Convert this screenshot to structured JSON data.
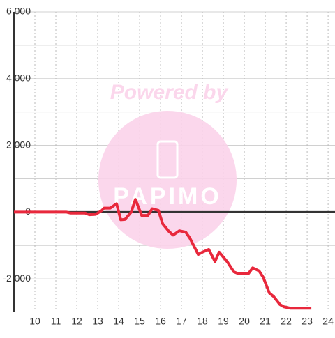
{
  "chart_data": {
    "type": "line",
    "watermark": {
      "text": "Powered by",
      "logo": "PAPIMO"
    },
    "x": [
      9,
      11.5,
      11.7,
      12.4,
      12.6,
      12.9,
      13.2,
      13.3,
      13.6,
      13.9,
      14.1,
      14.3,
      14.6,
      14.8,
      15.1,
      15.4,
      15.6,
      15.9,
      16.1,
      16.4,
      16.6,
      16.9,
      17.2,
      17.4,
      17.8,
      18.0,
      18.3,
      18.6,
      18.8,
      19.2,
      19.5,
      19.7,
      20.2,
      20.4,
      20.7,
      20.9,
      21.2,
      21.4,
      21.7,
      21.9,
      22.2,
      23.2
    ],
    "series": [
      {
        "color": "#e8283c",
        "values": [
          0,
          0,
          -30,
          -30,
          -80,
          -70,
          50,
          120,
          120,
          250,
          -230,
          -220,
          0,
          380,
          -100,
          -100,
          100,
          50,
          -350,
          -580,
          -690,
          -560,
          -600,
          -780,
          -1270,
          -1200,
          -1120,
          -1480,
          -1200,
          -1500,
          -1790,
          -1840,
          -1840,
          -1670,
          -1760,
          -1950,
          -2430,
          -2530,
          -2770,
          -2840,
          -2880,
          -2880
        ]
      }
    ],
    "xlim": [
      9,
      24.33
    ],
    "xticks": [
      10,
      11,
      12,
      13,
      14,
      15,
      16,
      17,
      18,
      19,
      20,
      21,
      22,
      23,
      24
    ],
    "ylim": [
      -3000,
      6000
    ],
    "yticks": [
      {
        "value": 6000,
        "label": "6,000"
      },
      {
        "value": 4000,
        "label": "4,000"
      },
      {
        "value": 2000,
        "label": "2,000"
      },
      0,
      {
        "value": -2000,
        "label": "-2,000"
      }
    ],
    "y_minor_grid": [
      5000,
      3000,
      1000,
      -1000
    ],
    "grid": true
  }
}
